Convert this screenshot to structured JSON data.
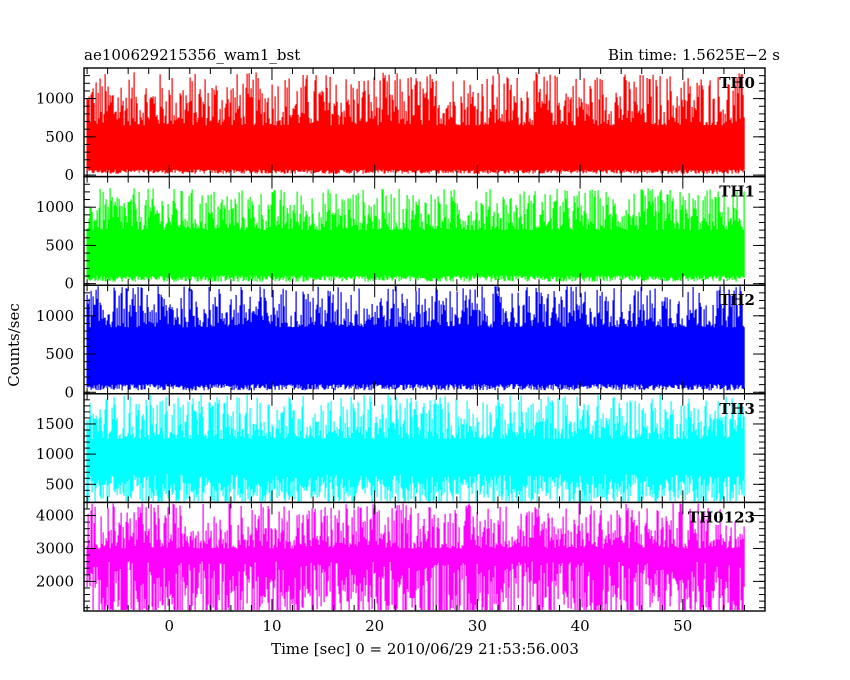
{
  "header": {
    "left_title": "ae100629215356_wam1_bst",
    "right_title": "Bin time: 1.5625E−2 s"
  },
  "chart_data": {
    "type": "line",
    "title": "ae100629215356_wam1_bst",
    "subtitle": "Bin time: 1.5625E−2 s",
    "xlabel": "Time [sec] 0 = 2010/06/29 21:53:56.003",
    "ylabel": "Counts/sec",
    "xlim": [
      -8.3,
      58
    ],
    "x_ticks": [
      0,
      10,
      20,
      30,
      40,
      50
    ],
    "x_data_range": [
      -8,
      56
    ],
    "bin_time_s": 0.015625,
    "panels": [
      {
        "name": "TH0",
        "color": "#ff0000",
        "ylim": [
          -20,
          1400
        ],
        "y_ticks": [
          0,
          500,
          1000
        ],
        "baseline": 40,
        "mean": 520,
        "upper_range": [
          650,
          1350
        ]
      },
      {
        "name": "TH1",
        "color": "#00ff00",
        "ylim": [
          -20,
          1400
        ],
        "y_ticks": [
          0,
          500,
          1000
        ],
        "baseline": 60,
        "mean": 600,
        "upper_range": [
          700,
          1250
        ]
      },
      {
        "name": "TH2",
        "color": "#0000ff",
        "ylim": [
          -20,
          1400
        ],
        "y_ticks": [
          0,
          500,
          1000
        ],
        "baseline": 60,
        "mean": 700,
        "upper_range": [
          850,
          1400
        ]
      },
      {
        "name": "TH3",
        "color": "#00ffff",
        "ylim": [
          200,
          2000
        ],
        "y_ticks": [
          500,
          1000,
          1500
        ],
        "baseline": 370,
        "mean": 1100,
        "upper_range": [
          1250,
          2000
        ]
      },
      {
        "name": "TH0123",
        "color": "#ff00ff",
        "ylim": [
          1100,
          4400
        ],
        "y_ticks": [
          2000,
          3000,
          4000
        ],
        "baseline": 1450,
        "mean": 2500,
        "upper_range": [
          3000,
          4400
        ]
      }
    ]
  }
}
